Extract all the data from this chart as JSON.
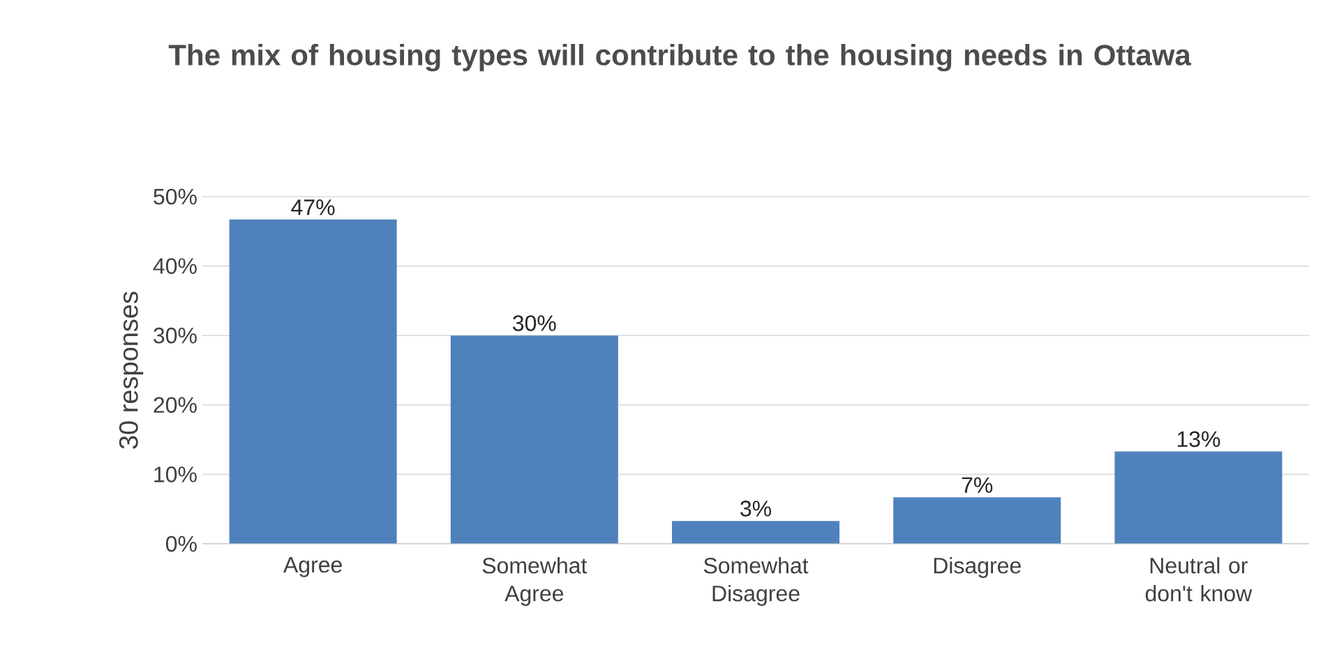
{
  "chart_data": {
    "type": "bar",
    "title": "The mix of housing types will contribute to the housing needs in Ottawa",
    "ylabel": "30 responses",
    "categories": [
      "Agree",
      "Somewhat Agree",
      "Somewhat Disagree",
      "Disagree",
      "Neutral or don't know"
    ],
    "values": [
      46.7,
      30,
      3.3,
      6.7,
      13.3
    ],
    "value_labels": [
      "47%",
      "30%",
      "3%",
      "7%",
      "13%"
    ],
    "color": "#4f81bd",
    "ylim": [
      0,
      50
    ],
    "yticks": [
      {
        "value": 0,
        "label": "0%"
      },
      {
        "value": 10,
        "label": "10%"
      },
      {
        "value": 20,
        "label": "20%"
      },
      {
        "value": 30,
        "label": "30%"
      },
      {
        "value": 40,
        "label": "40%"
      },
      {
        "value": 50,
        "label": "50%"
      }
    ],
    "grid": "y"
  }
}
